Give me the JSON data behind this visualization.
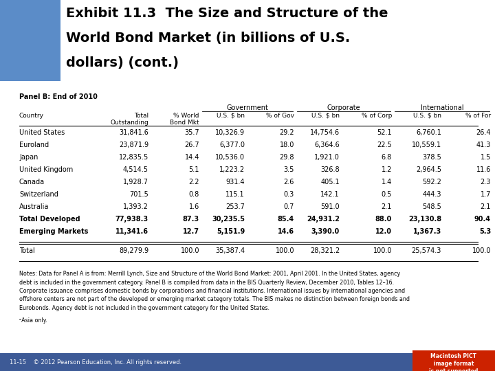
{
  "title_line1": "Exhibit 11.3  The Size and Structure of the",
  "title_line2": "World Bond Market (in billions of U.S.",
  "title_line3": "dollars) (cont.)",
  "panel_label": "Panel B: End of 2010",
  "col_headers_row2": [
    "Country",
    "Total\nOutstanding",
    "% World\nBond Mkt",
    "U.S. $ bn",
    "% of Gov",
    "U.S. $ bn",
    "% of Corp",
    "U.S. $ bn",
    "% of For"
  ],
  "group_labels": [
    "Government",
    "Corporate",
    "International"
  ],
  "rows": [
    [
      "United States",
      "31,841.6",
      "35.7",
      "10,326.9",
      "29.2",
      "14,754.6",
      "52.1",
      "6,760.1",
      "26.4"
    ],
    [
      "Euroland",
      "23,871.9",
      "26.7",
      "6,377.0",
      "18.0",
      "6,364.6",
      "22.5",
      "10,559.1",
      "41.3"
    ],
    [
      "Japan",
      "12,835.5",
      "14.4",
      "10,536.0",
      "29.8",
      "1,921.0",
      "6.8",
      "378.5",
      "1.5"
    ],
    [
      "United Kingdom",
      "4,514.5",
      "5.1",
      "1,223.2",
      "3.5",
      "326.8",
      "1.2",
      "2,964.5",
      "11.6"
    ],
    [
      "Canada",
      "1,928.7",
      "2.2",
      "931.4",
      "2.6",
      "405.1",
      "1.4",
      "592.2",
      "2.3"
    ],
    [
      "Switzerland",
      "701.5",
      "0.8",
      "115.1",
      "0.3",
      "142.1",
      "0.5",
      "444.3",
      "1.7"
    ],
    [
      "Australia",
      "1,393.2",
      "1.6",
      "253.7",
      "0.7",
      "591.0",
      "2.1",
      "548.5",
      "2.1"
    ],
    [
      "Total Developed",
      "77,938.3",
      "87.3",
      "30,235.5",
      "85.4",
      "24,931.2",
      "88.0",
      "23,130.8",
      "90.4"
    ],
    [
      "Emerging Markets",
      "11,341.6",
      "12.7",
      "5,151.9",
      "14.6",
      "3,390.0",
      "12.0",
      "1,367.3",
      "5.3"
    ]
  ],
  "total_row": [
    "Total",
    "89,279.9",
    "100.0",
    "35,387.4",
    "100.0",
    "28,321.2",
    "100.0",
    "25,574.3",
    "100.0"
  ],
  "notes_bold": "Notes:",
  "notes_rest": " Data for Panel A is from: Merrill Lynch, ",
  "notes_italic": "Size and Structure of the World Bond Market: 2001,",
  "notes_rest2": " April 2001. In the United States, agency\ndebt is included in the government category. Panel B is compiled from data in the ",
  "notes_italic2": "BIS Quarterly Review,",
  "notes_rest3": " December 2010, Tables 12–16.\nCorporate issuance comprises domestic bonds by corporations and financial institutions. International issues by international agencies and\noffshore centers are not part of the developed or emerging market category totals. The BIS makes no distinction between foreign bonds and\nEurobonds. Agency debt is not included in the government category for the United States.",
  "notes_full": "Notes: Data for Panel A is from: Merrill Lynch, Size and Structure of the World Bond Market: 2001, April 2001. In the United States, agency\ndebt is included in the government category. Panel B is compiled from data in the BIS Quarterly Review, December 2010, Tables 12–16.\nCorporate issuance comprises domestic bonds by corporations and financial institutions. International issues by international agencies and\noffshore centers are not part of the developed or emerging market category totals. The BIS makes no distinction between foreign bonds and\nEurobonds. Agency debt is not included in the government category for the United States.",
  "footnote": "ᵃAsia only.",
  "footer_left": "11-15    © 2012 Pearson Education, Inc. All rights reserved.",
  "bg_color": "#ffffff",
  "globe_color": "#5b8cc8",
  "footer_bg": "#3d5a96",
  "mac_bg": "#cc2200"
}
